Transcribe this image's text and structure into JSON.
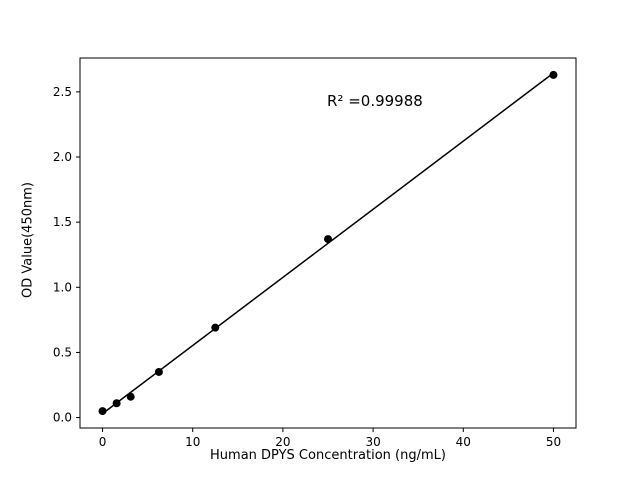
{
  "chart_data": {
    "type": "scatter",
    "title": "",
    "xlabel": "Human DPYS Concentration (ng/mL)",
    "ylabel": "OD Value(450nm)",
    "annotation": "R² =0.99988",
    "points": [
      {
        "x": 0,
        "y": 0.05
      },
      {
        "x": 1.56,
        "y": 0.11
      },
      {
        "x": 3.12,
        "y": 0.16
      },
      {
        "x": 6.25,
        "y": 0.35
      },
      {
        "x": 12.5,
        "y": 0.69
      },
      {
        "x": 25,
        "y": 1.37
      },
      {
        "x": 50,
        "y": 2.63
      }
    ],
    "fit_line": true,
    "xlim": [
      -2.5,
      52.5
    ],
    "ylim": [
      -0.08,
      2.76
    ],
    "xticks": [
      0,
      10,
      20,
      30,
      40,
      50
    ],
    "yticks": [
      0.0,
      0.5,
      1.0,
      1.5,
      2.0,
      2.5
    ],
    "grid": false,
    "legend": "none",
    "marker_color": "#000000",
    "line_color": "#000000",
    "background": "#ffffff"
  }
}
